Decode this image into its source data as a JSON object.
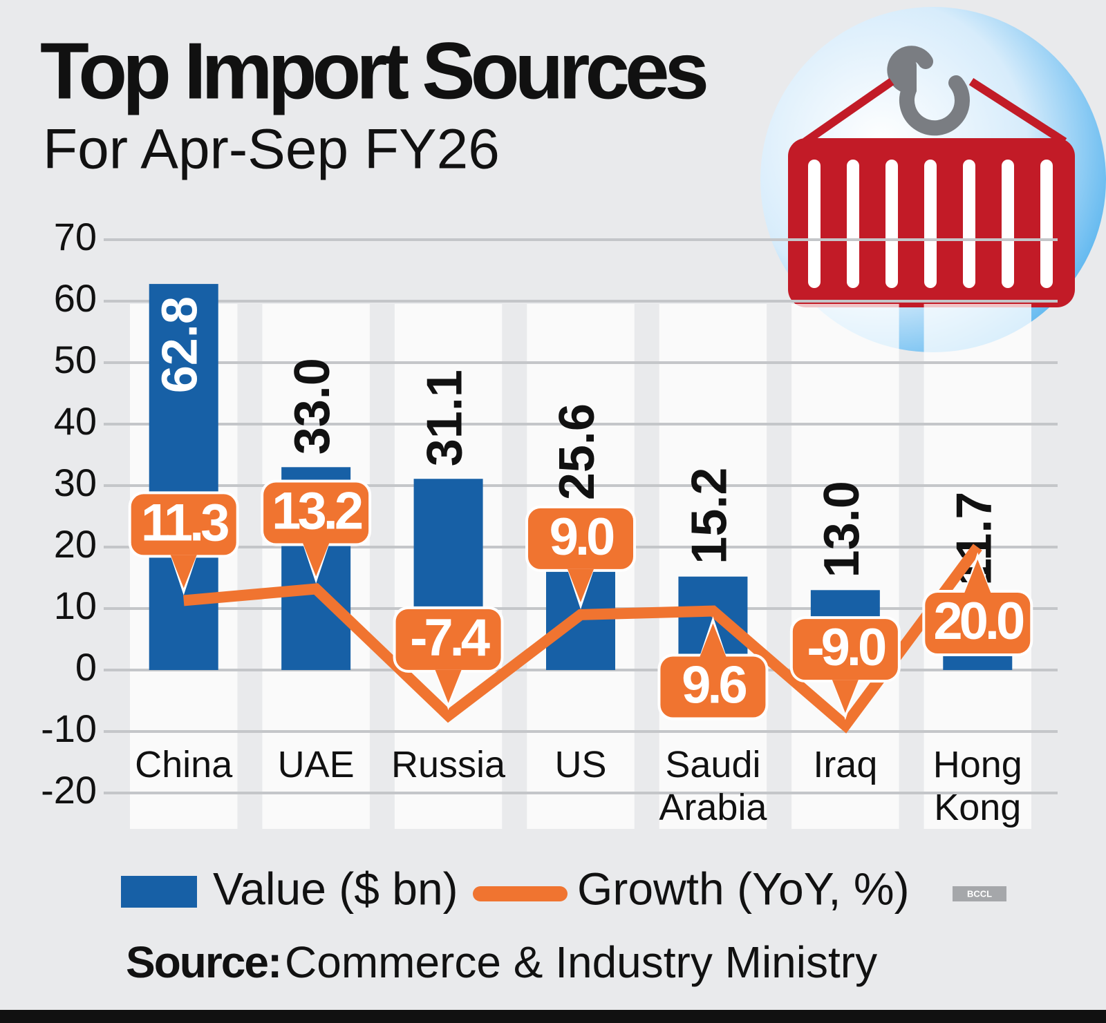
{
  "chart_data": {
    "type": "bar",
    "title": "Top Import Sources",
    "subtitle": "For Apr-Sep FY26",
    "categories": [
      "China",
      "UAE",
      "Russia",
      "US",
      "Saudi Arabia",
      "Iraq",
      "Hong Kong"
    ],
    "series": [
      {
        "name": "Value ($ bn)",
        "type": "bar",
        "color": "#1760a6",
        "values": [
          62.8,
          33,
          31.1,
          25.6,
          15.2,
          13,
          11.7
        ],
        "value_labels": [
          "62.8",
          "33.0",
          "31.1",
          "25.6",
          "15.2",
          "13.0",
          "11.7"
        ]
      },
      {
        "name": "Growth (YoY, %)",
        "type": "line",
        "color": "#f07430",
        "values": [
          11.3,
          13.2,
          -7.4,
          9,
          9.6,
          -9,
          20
        ],
        "value_labels": [
          "11.3",
          "13.2",
          "-7.4",
          "9.0",
          "9.6",
          "-9.0",
          "20.0"
        ]
      }
    ],
    "ylim": [
      -20,
      70
    ],
    "yticks": [
      -20,
      -10,
      0,
      10,
      20,
      30,
      40,
      50,
      60,
      70
    ],
    "grid": true,
    "source_label": "Source:",
    "source": "Commerce & Industry Ministry",
    "watermark": "BCCL"
  }
}
